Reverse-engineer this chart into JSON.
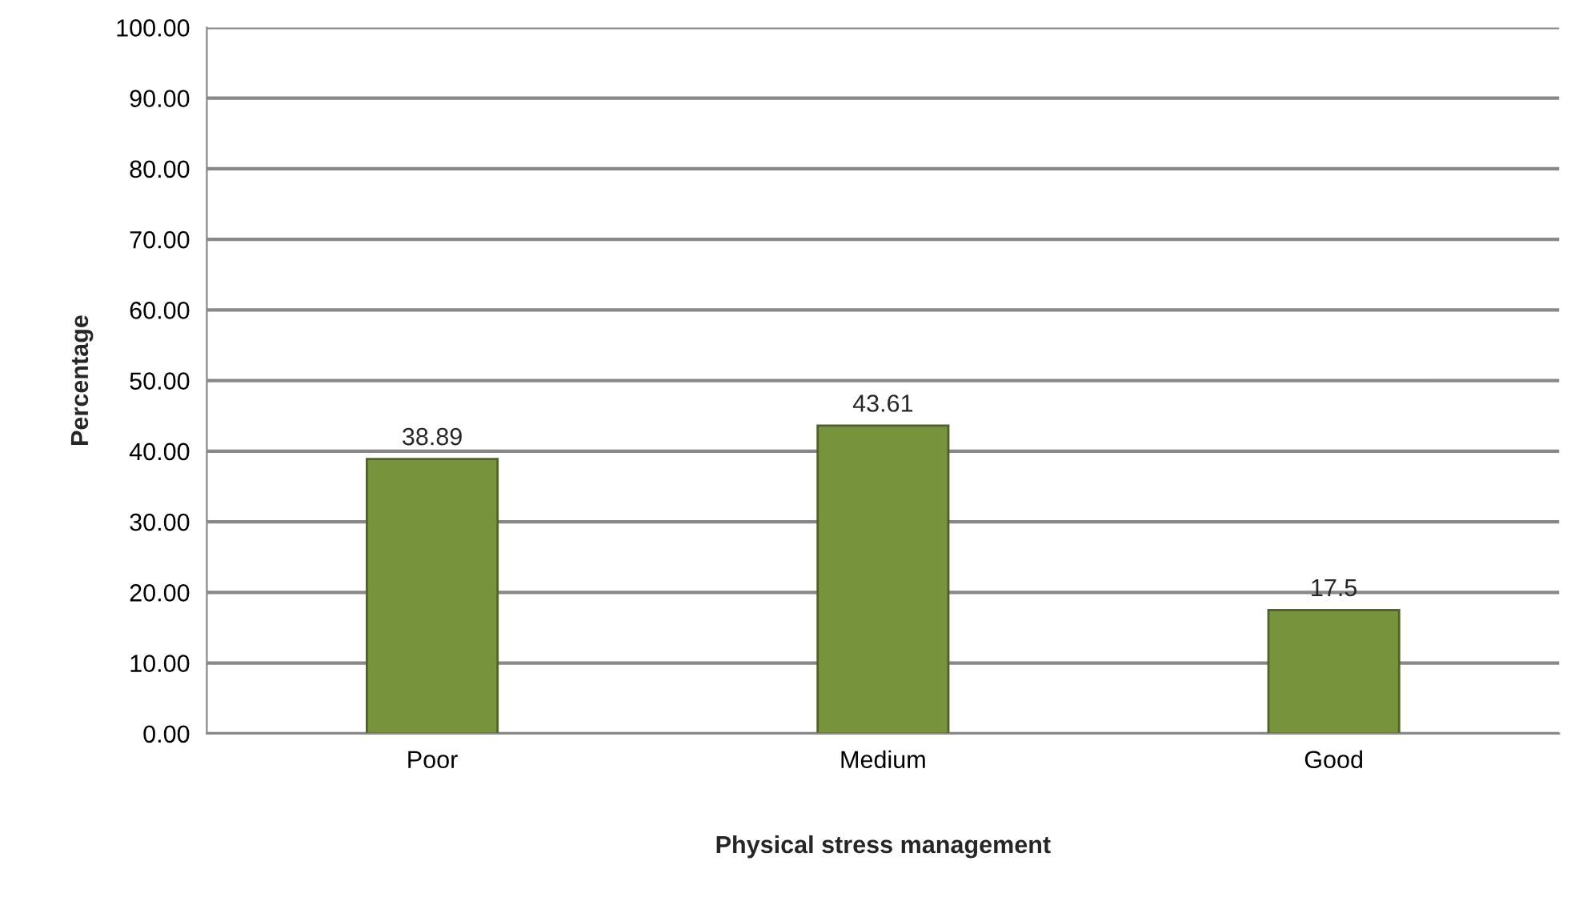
{
  "chart_data": {
    "type": "bar",
    "xlabel": "Physical stress management",
    "ylabel": "Percentage",
    "categories": [
      "Poor",
      "Medium",
      "Good"
    ],
    "values": [
      38.89,
      43.61,
      17.5
    ],
    "color": "#77933c",
    "ylim": [
      0,
      100
    ],
    "yticks": [
      {
        "value": 0,
        "label": "0.00"
      },
      {
        "value": 10,
        "label": "10.00"
      },
      {
        "value": 20,
        "label": "20.00"
      },
      {
        "value": 30,
        "label": "30.00"
      },
      {
        "value": 40,
        "label": "40.00"
      },
      {
        "value": 50,
        "label": "50.00"
      },
      {
        "value": 60,
        "label": "60.00"
      },
      {
        "value": 70,
        "label": "70.00"
      },
      {
        "value": 80,
        "label": "80.00"
      },
      {
        "value": 90,
        "label": "90.00"
      },
      {
        "value": 100,
        "label": "100.00"
      }
    ],
    "grid": "y",
    "data_labels": true
  }
}
